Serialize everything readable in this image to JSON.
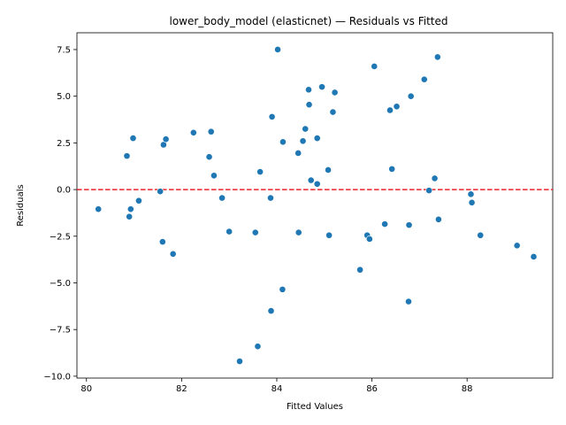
{
  "chart_data": {
    "type": "scatter",
    "title": "lower_body_model (elasticnet) — Residuals vs Fitted",
    "xlabel": "Fitted Values",
    "ylabel": "Residuals",
    "xlim": [
      79.8,
      89.8
    ],
    "ylim": [
      -10.1,
      8.4
    ],
    "xticks": [
      80,
      82,
      84,
      86,
      88
    ],
    "yticks": [
      -10.0,
      -7.5,
      -5.0,
      -2.5,
      0.0,
      2.5,
      5.0,
      7.5
    ],
    "xtick_labels": [
      "80",
      "82",
      "84",
      "86",
      "88"
    ],
    "ytick_labels": [
      "−10.0",
      "−7.5",
      "−5.0",
      "−2.5",
      "0.0",
      "2.5",
      "5.0",
      "7.5"
    ],
    "reference_line": {
      "y": 0,
      "style": "dashed",
      "color": "#e8262a"
    },
    "point_color": "#1f77b4",
    "points": [
      [
        80.25,
        -1.05
      ],
      [
        80.85,
        1.8
      ],
      [
        80.9,
        -1.45
      ],
      [
        80.93,
        -1.05
      ],
      [
        80.98,
        2.75
      ],
      [
        81.1,
        -0.6
      ],
      [
        81.55,
        -0.1
      ],
      [
        81.6,
        -2.8
      ],
      [
        81.62,
        2.4
      ],
      [
        81.67,
        2.7
      ],
      [
        81.82,
        -3.45
      ],
      [
        82.25,
        3.05
      ],
      [
        82.58,
        1.75
      ],
      [
        82.62,
        3.1
      ],
      [
        82.68,
        0.75
      ],
      [
        82.85,
        -0.45
      ],
      [
        83.0,
        -2.25
      ],
      [
        83.22,
        -9.2
      ],
      [
        83.55,
        -2.3
      ],
      [
        83.6,
        -8.4
      ],
      [
        83.65,
        0.95
      ],
      [
        83.87,
        -0.45
      ],
      [
        83.88,
        -6.5
      ],
      [
        83.9,
        3.9
      ],
      [
        84.02,
        7.5
      ],
      [
        84.12,
        -5.35
      ],
      [
        84.13,
        2.55
      ],
      [
        84.45,
        1.95
      ],
      [
        84.46,
        -2.3
      ],
      [
        84.55,
        2.6
      ],
      [
        84.6,
        3.25
      ],
      [
        84.67,
        5.35
      ],
      [
        84.68,
        4.55
      ],
      [
        84.72,
        0.5
      ],
      [
        84.85,
        0.3
      ],
      [
        84.85,
        2.75
      ],
      [
        84.95,
        5.5
      ],
      [
        85.08,
        1.05
      ],
      [
        85.1,
        -2.45
      ],
      [
        85.18,
        4.15
      ],
      [
        85.22,
        5.2
      ],
      [
        85.75,
        -4.3
      ],
      [
        85.9,
        -2.45
      ],
      [
        85.95,
        -2.65
      ],
      [
        86.05,
        6.6
      ],
      [
        86.27,
        -1.85
      ],
      [
        86.38,
        4.25
      ],
      [
        86.42,
        1.1
      ],
      [
        86.52,
        4.45
      ],
      [
        86.77,
        -6.0
      ],
      [
        86.78,
        -1.9
      ],
      [
        86.82,
        5.0
      ],
      [
        87.1,
        5.9
      ],
      [
        87.2,
        -0.05
      ],
      [
        87.32,
        0.6
      ],
      [
        87.38,
        7.1
      ],
      [
        87.4,
        -1.6
      ],
      [
        88.08,
        -0.25
      ],
      [
        88.1,
        -0.7
      ],
      [
        88.28,
        -2.45
      ],
      [
        89.05,
        -3.0
      ],
      [
        89.4,
        -3.6
      ]
    ]
  }
}
